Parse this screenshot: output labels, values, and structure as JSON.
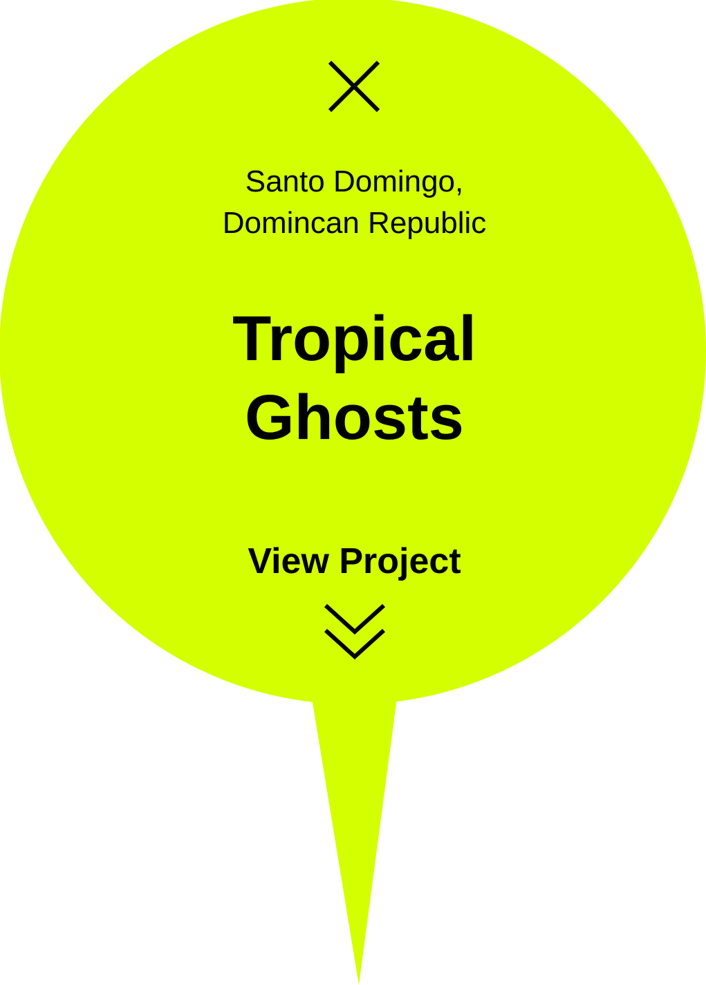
{
  "colors": {
    "pin_fill": "#d4ff00",
    "text": "#000000",
    "background": "#ffffff"
  },
  "close": {
    "icon": "close-icon"
  },
  "location": {
    "line1": "Santo Domingo,",
    "line2": "Domincan Republic"
  },
  "project": {
    "title_line1": "Tropical",
    "title_line2": "Ghosts"
  },
  "action": {
    "label": "View Project",
    "icon": "double-chevron-down-icon"
  }
}
